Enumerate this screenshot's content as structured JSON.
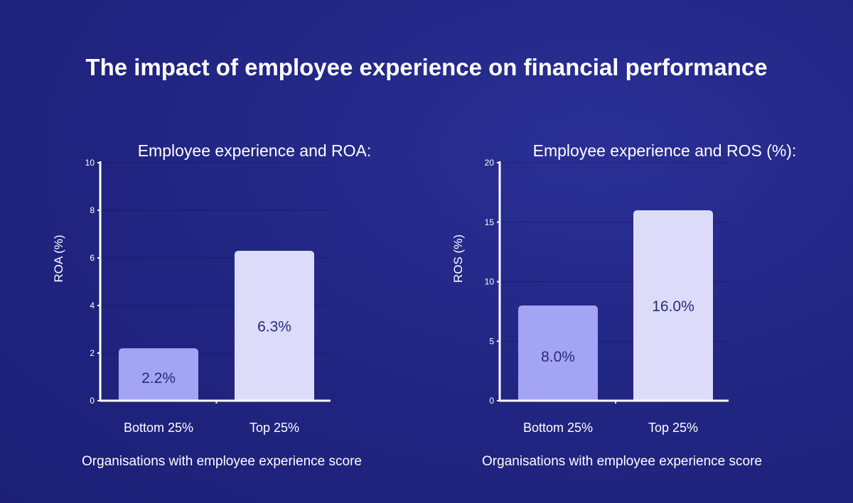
{
  "title": "The impact of employee experience on financial performance",
  "colors": {
    "background": "#222684",
    "bottom_bar": "#a3a4f3",
    "top_bar": "#dcdcfa",
    "label": "#262a7f"
  },
  "chart_data": [
    {
      "type": "bar",
      "title": "Employee experience and ROA:",
      "xlabel": "Organisations with employee experience score",
      "ylabel": "ROA (%)",
      "categories": [
        "Bottom 25%",
        "Top 25%"
      ],
      "values": [
        2.2,
        6.3
      ],
      "data_labels": [
        "2.2%",
        "6.3%"
      ],
      "ylim": [
        0,
        10
      ],
      "yticks": [
        "0",
        "2",
        "4",
        "6",
        "8",
        "10"
      ],
      "grid": true
    },
    {
      "type": "bar",
      "title": "Employee experience and ROS (%):",
      "xlabel": "Organisations with employee experience score",
      "ylabel": "ROS (%)",
      "categories": [
        "Bottom 25%",
        "Top 25%"
      ],
      "values": [
        8.0,
        16.0
      ],
      "data_labels": [
        "8.0%",
        "16.0%"
      ],
      "ylim": [
        0,
        20
      ],
      "yticks": [
        "0",
        "5",
        "10",
        "15",
        "20"
      ],
      "grid": true
    }
  ]
}
